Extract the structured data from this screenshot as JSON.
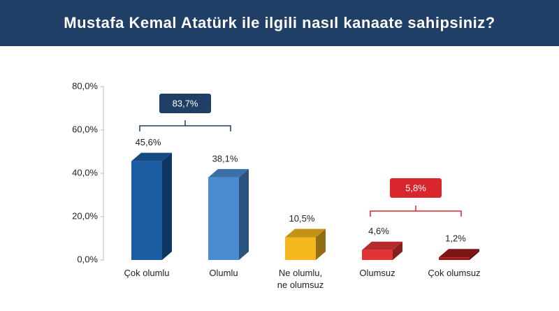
{
  "chart_data": {
    "type": "bar3d",
    "title": "Mustafa Kemal Atatürk ile ilgili nasıl kanaate sahipsiniz?",
    "categories": [
      "Çok olumlu",
      "Olumlu",
      "Ne olumlu,\nne olumsuz",
      "Olumsuz",
      "Çok olumsuz"
    ],
    "values": [
      45.6,
      38.1,
      10.5,
      4.6,
      1.2
    ],
    "value_labels": [
      "45,6%",
      "38,1%",
      "10,5%",
      "4,6%",
      "1,2%"
    ],
    "colors": [
      "#1b5ca3",
      "#4a8bd2",
      "#f4b71e",
      "#e23434",
      "#9e1a1a"
    ],
    "ylim": [
      0,
      80
    ],
    "yticks": [
      {
        "value": 0,
        "label": "0,0%"
      },
      {
        "value": 20,
        "label": "20,0%"
      },
      {
        "value": 40,
        "label": "40,0%"
      },
      {
        "value": 60,
        "label": "60,0%"
      },
      {
        "value": 80,
        "label": "80,0%"
      }
    ],
    "annotations": [
      {
        "text": "83,7%",
        "value": 83.7,
        "color": "#1f3f66"
      },
      {
        "text": "5,8%",
        "value": 5.8,
        "color": "#d9262e"
      }
    ]
  }
}
